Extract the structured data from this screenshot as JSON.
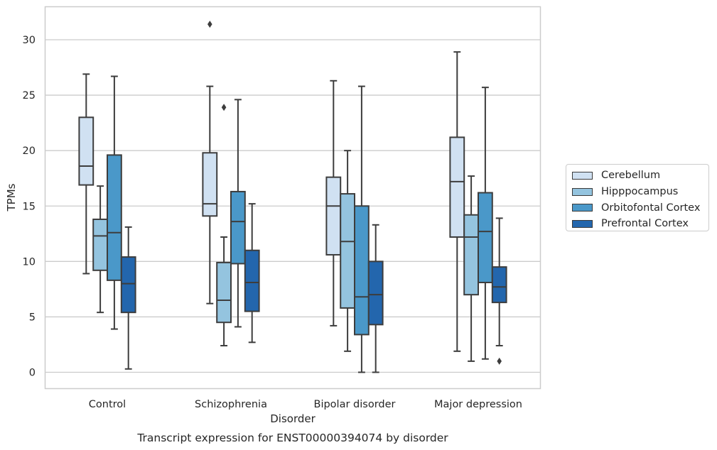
{
  "chart_data": {
    "type": "box",
    "title": "Transcript expression for ENST00000394074 by disorder",
    "xlabel": "Disorder",
    "ylabel": "TPMs",
    "ylim": [
      -1.5,
      33
    ],
    "yticks": [
      0,
      5,
      10,
      15,
      20,
      25,
      30
    ],
    "grid": "horizontal",
    "legend_placement": "right",
    "categories": [
      "Control",
      "Schizophrenia",
      "Bipolar disorder",
      "Major depression"
    ],
    "series": [
      {
        "name": "Cerebellum",
        "color": "#d0e1f2",
        "boxes": [
          {
            "whisker_low": 8.9,
            "q1": 16.9,
            "median": 18.6,
            "q3": 23.0,
            "whisker_high": 26.9,
            "outliers": []
          },
          {
            "whisker_low": 6.2,
            "q1": 14.1,
            "median": 15.2,
            "q3": 19.8,
            "whisker_high": 25.8,
            "outliers": [
              31.4
            ]
          },
          {
            "whisker_low": 4.2,
            "q1": 10.6,
            "median": 15.0,
            "q3": 17.6,
            "whisker_high": 26.3,
            "outliers": []
          },
          {
            "whisker_low": 1.9,
            "q1": 12.2,
            "median": 17.2,
            "q3": 21.2,
            "whisker_high": 28.9,
            "outliers": []
          }
        ]
      },
      {
        "name": "Hipppocampus",
        "color": "#94c4df",
        "boxes": [
          {
            "whisker_low": 5.4,
            "q1": 9.2,
            "median": 12.3,
            "q3": 13.8,
            "whisker_high": 16.8,
            "outliers": []
          },
          {
            "whisker_low": 2.4,
            "q1": 4.5,
            "median": 6.5,
            "q3": 9.9,
            "whisker_high": 12.2,
            "outliers": [
              23.9
            ]
          },
          {
            "whisker_low": 1.9,
            "q1": 5.8,
            "median": 11.8,
            "q3": 16.1,
            "whisker_high": 20.0,
            "outliers": []
          },
          {
            "whisker_low": 1.0,
            "q1": 7.0,
            "median": 12.2,
            "q3": 14.2,
            "whisker_high": 17.7,
            "outliers": []
          }
        ]
      },
      {
        "name": "Orbitofontal Cortex",
        "color": "#4a98c9",
        "boxes": [
          {
            "whisker_low": 3.9,
            "q1": 8.3,
            "median": 12.6,
            "q3": 19.6,
            "whisker_high": 26.7,
            "outliers": []
          },
          {
            "whisker_low": 4.1,
            "q1": 9.8,
            "median": 13.6,
            "q3": 16.3,
            "whisker_high": 24.6,
            "outliers": []
          },
          {
            "whisker_low": 0.0,
            "q1": 3.4,
            "median": 6.8,
            "q3": 15.0,
            "whisker_high": 25.8,
            "outliers": []
          },
          {
            "whisker_low": 1.2,
            "q1": 8.1,
            "median": 12.7,
            "q3": 16.2,
            "whisker_high": 25.7,
            "outliers": []
          }
        ]
      },
      {
        "name": "Prefrontal Cortex",
        "color": "#2366ad",
        "boxes": [
          {
            "whisker_low": 0.3,
            "q1": 5.4,
            "median": 8.0,
            "q3": 10.4,
            "whisker_high": 13.1,
            "outliers": []
          },
          {
            "whisker_low": 2.7,
            "q1": 5.5,
            "median": 8.1,
            "q3": 11.0,
            "whisker_high": 15.2,
            "outliers": []
          },
          {
            "whisker_low": 0.0,
            "q1": 4.3,
            "median": 7.0,
            "q3": 10.0,
            "whisker_high": 13.3,
            "outliers": []
          },
          {
            "whisker_low": 2.4,
            "q1": 6.3,
            "median": 7.7,
            "q3": 9.5,
            "whisker_high": 13.9,
            "outliers": [
              1.0
            ]
          }
        ]
      }
    ]
  }
}
